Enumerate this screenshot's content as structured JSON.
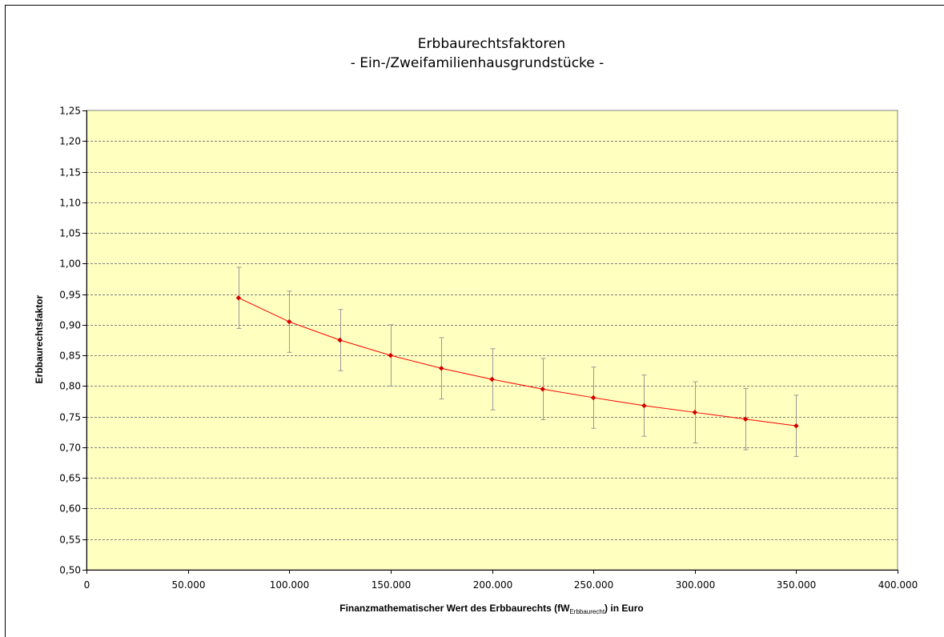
{
  "chart_data": {
    "type": "line",
    "title": "Erbbaurechtsfaktoren",
    "subtitle": "- Ein-/Zweifamilienhausgrundstücke -",
    "xlabel": {
      "prefix": "Finanzmathematischer Wert des Erbbaurechts (fW",
      "subscript": "Erbbaurecht",
      "suffix": ") in Euro"
    },
    "ylabel": "Erbbaurechtsfaktor",
    "xlim": [
      0,
      400000
    ],
    "ylim": [
      0.5,
      1.25
    ],
    "x_ticks": [
      0,
      50000,
      100000,
      150000,
      200000,
      250000,
      300000,
      350000,
      400000
    ],
    "x_tick_labels": [
      "0",
      "50.000",
      "100.000",
      "150.000",
      "200.000",
      "250.000",
      "300.000",
      "350.000",
      "400.000"
    ],
    "y_ticks": [
      0.5,
      0.55,
      0.6,
      0.65,
      0.7,
      0.75,
      0.8,
      0.85,
      0.9,
      0.95,
      1.0,
      1.05,
      1.1,
      1.15,
      1.2,
      1.25
    ],
    "y_tick_labels": [
      "0,50",
      "0,55",
      "0,60",
      "0,65",
      "0,70",
      "0,75",
      "0,80",
      "0,85",
      "0,90",
      "0,95",
      "1,00",
      "1,05",
      "1,10",
      "1,15",
      "1,20",
      "1,25"
    ],
    "grid": "horizontal-dashed",
    "series": [
      {
        "x": [
          75000,
          100000,
          125000,
          150000,
          175000,
          200000,
          225000,
          250000,
          275000,
          300000,
          325000,
          350000
        ],
        "y": [
          0.944,
          0.905,
          0.875,
          0.85,
          0.829,
          0.811,
          0.795,
          0.781,
          0.768,
          0.757,
          0.746,
          0.735
        ],
        "error": 0.05
      }
    ],
    "colors": {
      "plot_bg": "#ffffc0",
      "line": "#ff0000",
      "marker": "#cc0000",
      "error_bar": "#999999",
      "grid": "#808080"
    }
  }
}
